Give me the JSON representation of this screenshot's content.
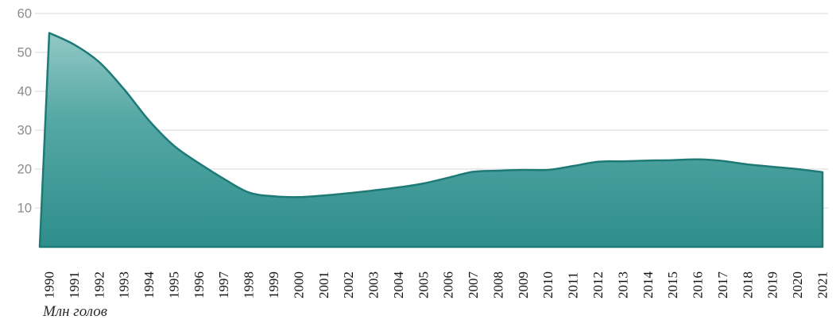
{
  "chart_data": {
    "type": "area",
    "title": "",
    "caption": "Млн голов",
    "categories": [
      "1990",
      "1991",
      "1992",
      "1993",
      "1994",
      "1995",
      "1996",
      "1997",
      "1998",
      "1999",
      "2000",
      "2001",
      "2002",
      "2003",
      "2004",
      "2005",
      "2006",
      "2007",
      "2008",
      "2009",
      "2010",
      "2011",
      "2012",
      "2013",
      "2014",
      "2015",
      "2016",
      "2017",
      "2018",
      "2019",
      "2020",
      "2021"
    ],
    "values": [
      55,
      52,
      47.5,
      40.5,
      32.5,
      26,
      21.5,
      17.5,
      14,
      13,
      12.8,
      13.2,
      13.8,
      14.5,
      15.3,
      16.3,
      17.8,
      19.3,
      19.6,
      19.8,
      19.8,
      20.8,
      21.9,
      22,
      22.2,
      22.3,
      22.5,
      22.1,
      21.2,
      20.6,
      20,
      19.2
    ],
    "ylim": [
      0,
      60
    ],
    "yticks": [
      10,
      20,
      30,
      40,
      50,
      60
    ],
    "grid": true,
    "legend": "none",
    "colors": {
      "area_top": "#a0d0cd",
      "area_mid": "#55a8a5",
      "area_bottom": "#2e8e8b",
      "line": "#1e7a77",
      "grid_line": "#d8d8d8",
      "y_label": "#8b8b8b",
      "x_label": "#141414"
    }
  }
}
